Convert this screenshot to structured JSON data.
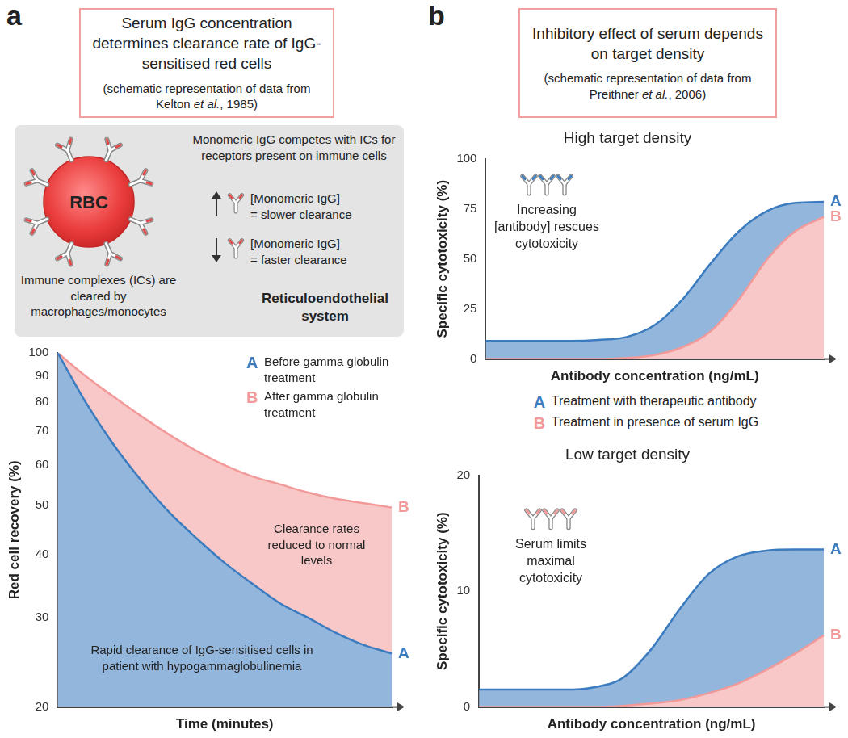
{
  "panels": [
    {
      "label": "a",
      "title": "Serum IgG concentration determines clearance rate of IgG-sensitised red cells",
      "subtitle": [
        "(schematic representation of data from Kelton ",
        "et al.",
        ", 1985)"
      ],
      "diagram": {
        "cell": "RBC",
        "complexes": "Immune complexes (ICs) are cleared by macrophages/monocytes",
        "competition": "Monomeric IgG competes with ICs for receptors present on immune cells",
        "effects": [
          {
            "arrow": "up",
            "label": "[Monomeric IgG]",
            "text": "= slower clearance"
          },
          {
            "arrow": "down",
            "label": "[Monomeric IgG]",
            "text": "= faster clearance"
          }
        ],
        "system": "Reticuloendothelial system"
      }
    },
    {
      "label": "b",
      "title": "Inhibitory effect of serum depends on target density",
      "subtitle": [
        "(schematic representation of data from Preithner ",
        "et al.",
        ", 2006)"
      ],
      "key": [
        {
          "name": "A",
          "text": "Treatment with therapeutic antibody"
        },
        {
          "name": "B",
          "text": "Treatment in presence of serum IgG"
        }
      ]
    }
  ],
  "chart_data": [
    {
      "type": "area",
      "x_label": "Time (minutes)",
      "y_label": "Red cell recovery (%)",
      "categories": [
        null,
        null,
        null,
        null,
        null,
        null,
        null,
        null,
        null,
        null,
        null,
        null,
        null
      ],
      "log": "y",
      "ylim": [
        20,
        100
      ],
      "yticks": [
        20,
        30,
        40,
        50,
        60,
        70,
        80,
        90,
        100
      ],
      "grid": false,
      "tick_labels": "y",
      "series": [
        {
          "name": "A",
          "color": "#3b7bbf",
          "values": [
            100,
            80,
            66,
            56,
            48.5,
            43,
            38.5,
            35,
            32,
            30,
            28,
            26.5,
            25.5
          ]
        },
        {
          "name": "B",
          "color": "#f29a9a",
          "values": [
            100,
            90,
            82,
            75,
            69,
            64,
            60,
            57,
            55,
            53,
            51.5,
            50.5,
            49.5
          ]
        }
      ],
      "key": [
        {
          "name": "A",
          "text": "Before gamma globulin treatment"
        },
        {
          "name": "B",
          "text": "After gamma globulin treatment"
        }
      ],
      "annotations": [
        "Rapid clearance of IgG-sensitised cells in patient with hypogammaglobulinemia",
        "Clearance rates reduced to normal levels"
      ]
    },
    {
      "type": "area",
      "title": "High target density",
      "x_label": "Antibody concentration (ng/mL)",
      "y_label": "Specific cytotoxicity (%)",
      "categories": [
        null,
        null,
        null,
        null,
        null,
        null,
        null,
        null,
        null,
        null,
        null,
        null,
        null
      ],
      "ylim": [
        0,
        100
      ],
      "yticks": [
        0,
        25,
        50,
        75,
        100
      ],
      "grid": false,
      "tick_labels": "y",
      "series": [
        {
          "name": "A",
          "color": "#3b7bbf",
          "values": [
            9,
            9,
            9,
            9,
            9.5,
            11,
            17,
            30,
            48,
            64,
            74,
            78,
            78.5
          ]
        },
        {
          "name": "B",
          "color": "#f29a9a",
          "values": [
            0,
            0,
            0,
            0,
            0,
            0.5,
            2,
            6,
            14,
            30,
            50,
            64,
            71
          ]
        }
      ],
      "annotations": [
        "Increasing [antibody] rescues cytotoxicity"
      ]
    },
    {
      "type": "area",
      "title": "Low target density",
      "x_label": "Antibody concentration (ng/mL)",
      "y_label": "Specific cytotoxicity (%)",
      "categories": [
        null,
        null,
        null,
        null,
        null,
        null,
        null,
        null,
        null,
        null,
        null,
        null,
        null
      ],
      "ylim": [
        0,
        20
      ],
      "yticks": [
        0,
        10,
        20
      ],
      "grid": false,
      "tick_labels": "y",
      "series": [
        {
          "name": "A",
          "color": "#3b7bbf",
          "values": [
            1.5,
            1.5,
            1.5,
            1.5,
            1.7,
            2.5,
            5,
            8.5,
            11.5,
            13,
            13.5,
            13.6,
            13.6
          ]
        },
        {
          "name": "B",
          "color": "#f29a9a",
          "values": [
            0,
            0,
            0,
            0,
            0,
            0.1,
            0.3,
            0.6,
            1.2,
            2,
            3.2,
            4.6,
            6.2
          ]
        }
      ],
      "annotations": [
        "Serum limits maximal cytotoxicity"
      ]
    }
  ]
}
